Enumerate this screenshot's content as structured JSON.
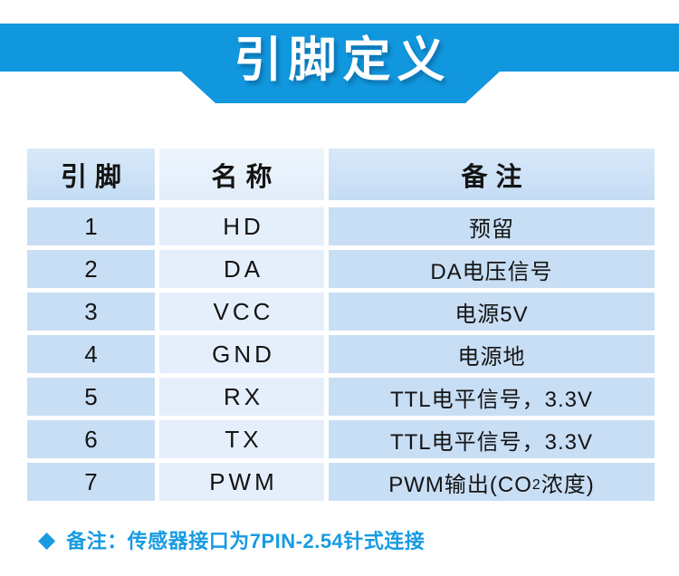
{
  "banner": {
    "title": "引脚定义",
    "bg_color": "#1197de",
    "text_color": "#ffffff"
  },
  "table": {
    "headers": [
      "引脚",
      "名称",
      "备注"
    ],
    "rows": [
      {
        "pin": "1",
        "name": "HD",
        "remark": [
          "预留",
          "",
          ""
        ]
      },
      {
        "pin": "2",
        "name": "DA",
        "remark": [
          "DA电压信号",
          "",
          ""
        ]
      },
      {
        "pin": "3",
        "name": "VCC",
        "remark": [
          "电源5V",
          "",
          ""
        ]
      },
      {
        "pin": "4",
        "name": "GND",
        "remark": [
          "电源地",
          "",
          ""
        ]
      },
      {
        "pin": "5",
        "name": "RX",
        "remark": [
          "TTL电平信号，3.3V",
          "",
          ""
        ]
      },
      {
        "pin": "6",
        "name": "TX",
        "remark": [
          "TTL电平信号，3.3V",
          "",
          ""
        ]
      },
      {
        "pin": "7",
        "name": "PWM",
        "remark": [
          "PWM输出(CO",
          "2",
          "浓度)"
        ]
      }
    ],
    "cell_colors": {
      "outer_columns": "#c8def5",
      "middle_column": "#e5effb"
    }
  },
  "note": {
    "bullet": "◆",
    "text": "备注：传感器接口为7PIN-2.54针式连接",
    "color": "#189be1"
  }
}
